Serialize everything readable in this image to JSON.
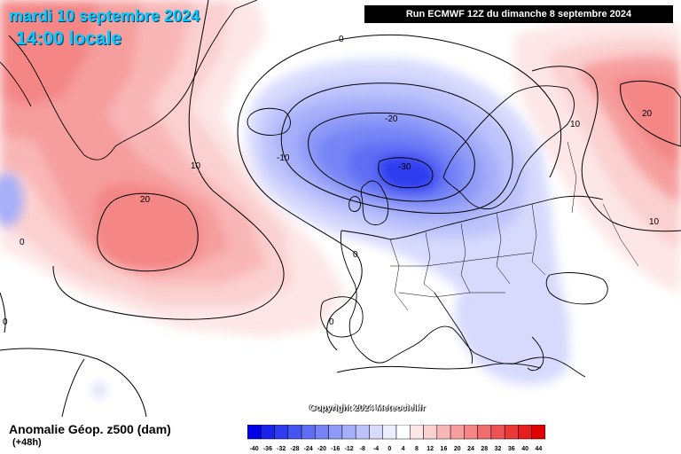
{
  "header": {
    "date": "mardi 10 septembre 2024",
    "time": "14:00 locale",
    "run": "Run ECMWF 12Z du dimanche 8 septembre 2024"
  },
  "footer": {
    "parameter": "Anomalie Géop. z500 (dam)",
    "lead": "(+48h)",
    "copyright": "Copyright 2024 Meteociel.fr"
  },
  "contour_labels": [
    "0",
    "-10",
    "-20",
    "-30",
    "10",
    "20"
  ],
  "legend": {
    "values": [
      "-40",
      "-36",
      "-32",
      "-28",
      "-24",
      "-20",
      "-16",
      "-12",
      "-8",
      "-4",
      "0",
      "4",
      "8",
      "12",
      "16",
      "20",
      "24",
      "28",
      "32",
      "36",
      "40",
      "44"
    ],
    "colors": [
      "#0000e6",
      "#1a22ee",
      "#2e3cf0",
      "#4655f2",
      "#5e6df4",
      "#7684f6",
      "#8e9af7",
      "#a6aff9",
      "#bec4fb",
      "#d7dafd",
      "#eceefe",
      "#ffffff",
      "#fde6e6",
      "#fbd0d0",
      "#f9b6b6",
      "#f69e9e",
      "#f48686",
      "#f16c6c",
      "#ee5252",
      "#eb3838",
      "#e81e1e",
      "#e00000"
    ]
  },
  "colors": {
    "title": "#00ccff",
    "land": "#ffffff",
    "positive": "#f48686",
    "negative": "#4655f2"
  }
}
